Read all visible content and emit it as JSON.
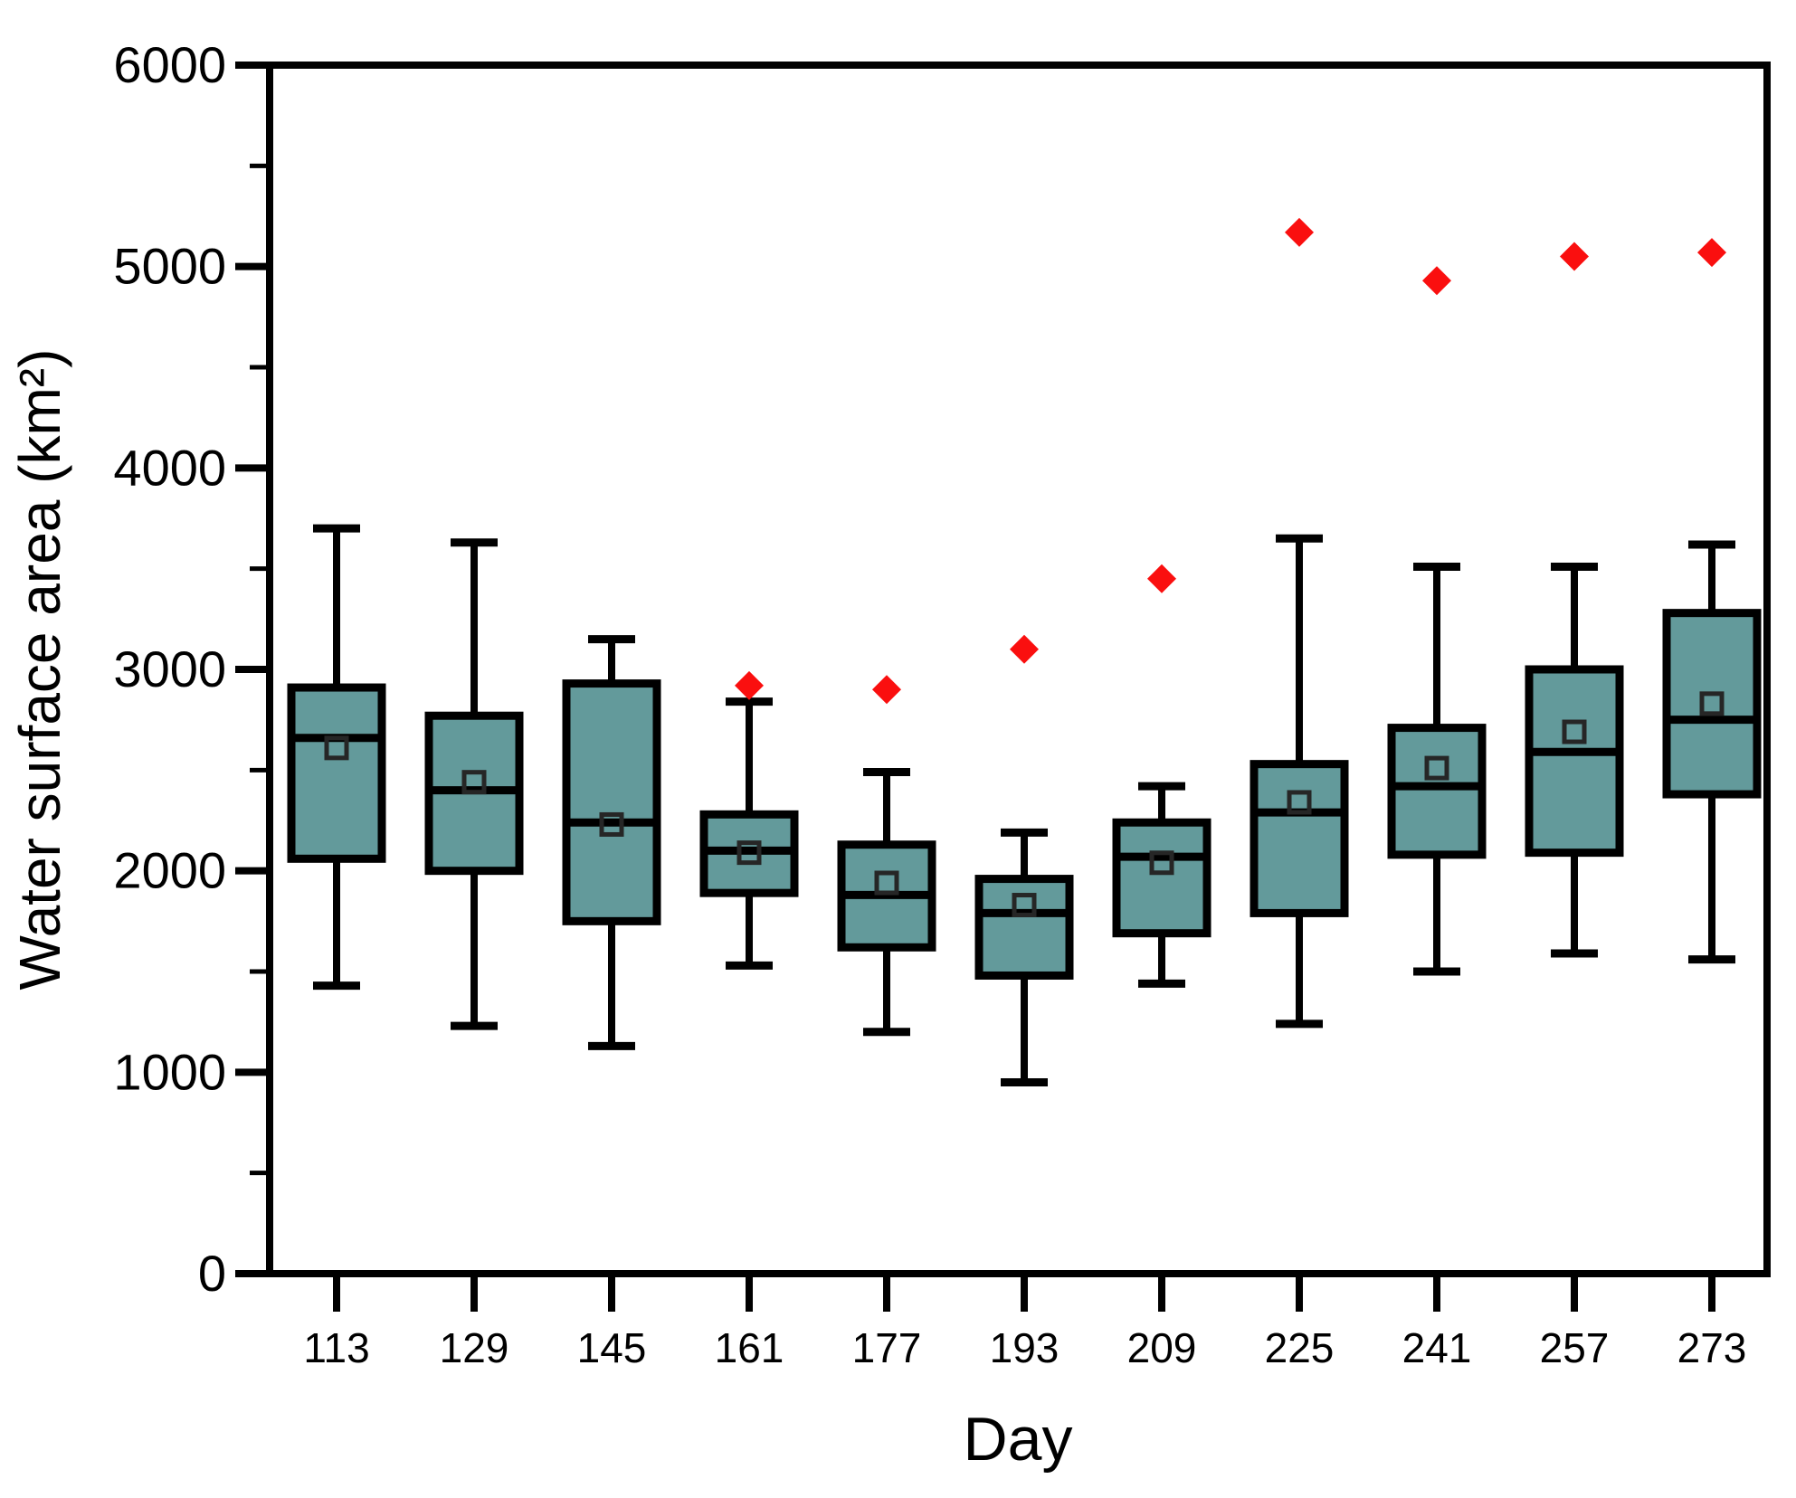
{
  "chart_data": {
    "type": "boxplot",
    "title": "",
    "xlabel": "Day",
    "ylabel": "Water surface area (km²)",
    "ylim": [
      0,
      6000
    ],
    "y_major_ticks": [
      0,
      1000,
      2000,
      3000,
      4000,
      5000,
      6000
    ],
    "y_minor_ticks": [
      500,
      1500,
      2500,
      3500,
      4500,
      5500
    ],
    "grid": false,
    "legend": "none",
    "categories": [
      113,
      129,
      145,
      161,
      177,
      193,
      209,
      225,
      241,
      257,
      273
    ],
    "boxes": [
      {
        "day": 113,
        "whisker_low": 1430,
        "q1": 2060,
        "median": 2660,
        "mean": 2610,
        "q3": 2910,
        "whisker_high": 3700,
        "diamond": null
      },
      {
        "day": 129,
        "whisker_low": 1230,
        "q1": 2000,
        "median": 2400,
        "mean": 2440,
        "q3": 2770,
        "whisker_high": 3630,
        "diamond": null
      },
      {
        "day": 145,
        "whisker_low": 1130,
        "q1": 1750,
        "median": 2240,
        "mean": 2230,
        "q3": 2930,
        "whisker_high": 3150,
        "diamond": null
      },
      {
        "day": 161,
        "whisker_low": 1530,
        "q1": 1890,
        "median": 2100,
        "mean": 2090,
        "q3": 2280,
        "whisker_high": 2840,
        "diamond": 2920
      },
      {
        "day": 177,
        "whisker_low": 1200,
        "q1": 1620,
        "median": 1880,
        "mean": 1940,
        "q3": 2130,
        "whisker_high": 2490,
        "diamond": 2900
      },
      {
        "day": 193,
        "whisker_low": 950,
        "q1": 1480,
        "median": 1790,
        "mean": 1830,
        "q3": 1960,
        "whisker_high": 2190,
        "diamond": 3100
      },
      {
        "day": 209,
        "whisker_low": 1440,
        "q1": 1690,
        "median": 2070,
        "mean": 2040,
        "q3": 2240,
        "whisker_high": 2420,
        "diamond": 3450
      },
      {
        "day": 225,
        "whisker_low": 1240,
        "q1": 1790,
        "median": 2290,
        "mean": 2340,
        "q3": 2530,
        "whisker_high": 3650,
        "diamond": 5170
      },
      {
        "day": 241,
        "whisker_low": 1500,
        "q1": 2080,
        "median": 2420,
        "mean": 2510,
        "q3": 2710,
        "whisker_high": 3510,
        "diamond": 4930
      },
      {
        "day": 257,
        "whisker_low": 1590,
        "q1": 2090,
        "median": 2590,
        "mean": 2690,
        "q3": 3000,
        "whisker_high": 3510,
        "diamond": 5050
      },
      {
        "day": 273,
        "whisker_low": 1560,
        "q1": 2380,
        "median": 2750,
        "mean": 2830,
        "q3": 3280,
        "whisker_high": 3620,
        "diamond": 5070
      }
    ],
    "series_notes": [
      {
        "name": "box-series",
        "marker": "open-square-mean"
      },
      {
        "name": "diamond-series",
        "marker": "filled-diamond"
      }
    ],
    "colors": {
      "box_fill": "#639a9b",
      "box_stroke": "#000000",
      "median_stroke": "#000000",
      "whisker_stroke": "#000000",
      "mean_marker_stroke": "#262626",
      "diamond_fill": "#fa0f0f",
      "axis": "#000000",
      "background": "#ffffff"
    }
  }
}
